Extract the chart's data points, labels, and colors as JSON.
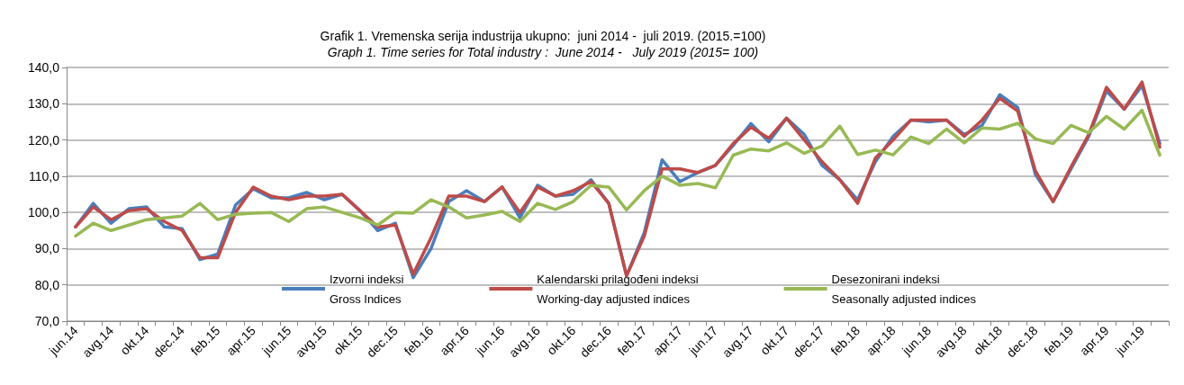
{
  "chart_data": {
    "type": "line",
    "title": "Grafik 1. Vremenska serija industrija ukupno:  juni 2014 -  juli 2019. (2015.=100)",
    "subtitle": "Graph 1. Time series for Total industry :  June 2014 -   July 2019 (2015= 100)",
    "categories": [
      "jun.14",
      null,
      "avg.14",
      null,
      "okt.14",
      null,
      "dec.14",
      null,
      "feb.15",
      null,
      "apr.15",
      null,
      "jun.15",
      null,
      "avg.15",
      null,
      "okt.15",
      null,
      "dec.15",
      null,
      "feb.16",
      null,
      "apr.16",
      null,
      "jun.16",
      null,
      "avg.16",
      null,
      "okt.16",
      null,
      "dec.16",
      null,
      "feb.17",
      null,
      "apr.17",
      null,
      "jun.17",
      null,
      "avg.17",
      null,
      "okt.17",
      null,
      "dec.17",
      null,
      "feb.18",
      null,
      "apr.18",
      null,
      "jun.18",
      null,
      "avg.18",
      null,
      "okt.18",
      null,
      "dec.18",
      null,
      "feb.19",
      null,
      "apr.19",
      null,
      "jun.19",
      null
    ],
    "series": [
      {
        "name": "Izvorni indeksi\nGross Indices",
        "color": "#4a7ebb",
        "values": [
          96,
          102.5,
          97,
          101,
          101.5,
          96,
          95.5,
          87,
          88.5,
          102,
          106.5,
          104,
          104,
          105.5,
          103.5,
          105,
          100.5,
          95,
          97,
          82,
          90,
          103,
          106,
          103,
          107,
          98.5,
          107.5,
          104.5,
          105,
          109,
          102.5,
          82.5,
          94.5,
          114.5,
          108.5,
          111,
          113,
          118.5,
          124.5,
          119.5,
          126,
          121.5,
          113,
          109,
          103.5,
          114,
          121,
          125.5,
          125,
          125.5,
          121.5,
          124,
          132.5,
          129,
          110.5,
          103,
          112,
          121,
          133.5,
          128.5,
          135,
          119
        ]
      },
      {
        "name": "Kalendarski prilagođeni indeksi\nWorking-day adjusted indices",
        "color": "#be4b48",
        "values": [
          96,
          101.5,
          98,
          100.5,
          101,
          97.5,
          95,
          87.5,
          87.5,
          100,
          107,
          104.5,
          103.5,
          104.5,
          104.5,
          105,
          100.5,
          96,
          96.5,
          83,
          93,
          104.5,
          104.5,
          103,
          107,
          100,
          107,
          104.5,
          106,
          108.5,
          102.5,
          82.5,
          93.5,
          112,
          112,
          111,
          113,
          119,
          123.5,
          120.5,
          126,
          120,
          114,
          109,
          102.5,
          115,
          120,
          125.5,
          125.5,
          125.5,
          121,
          125.5,
          131.5,
          128,
          111.5,
          103,
          112.5,
          121.5,
          134.5,
          128.5,
          136,
          118
        ]
      },
      {
        "name": "Desezonirani indeksi\nSeasonally adjusted indices",
        "color": "#98b954",
        "values": [
          93.5,
          97,
          95,
          96.5,
          98,
          98.5,
          99,
          102.5,
          98,
          99.5,
          99.8,
          100,
          97.5,
          101,
          101.5,
          100,
          98.5,
          96.5,
          100,
          99.8,
          103.5,
          101.5,
          98.5,
          99.3,
          100.3,
          97.5,
          102.5,
          100.8,
          103,
          107.5,
          107,
          100.7,
          106,
          110,
          107.5,
          108,
          106.8,
          115.8,
          117.5,
          117,
          119.2,
          116.3,
          118.3,
          123.8,
          116,
          117.2,
          115.9,
          120.8,
          119,
          123,
          119.2,
          123.3,
          123,
          124.6,
          120.3,
          119,
          124,
          122,
          126.5,
          123,
          128.2,
          115.8
        ]
      }
    ],
    "ylim": [
      70,
      140
    ],
    "yticks": [
      {
        "value": 70,
        "label": "70,0"
      },
      {
        "value": 80,
        "label": "80,0"
      },
      {
        "value": 90,
        "label": "90,0"
      },
      {
        "value": 100,
        "label": "100,0"
      },
      {
        "value": 110,
        "label": "110,0"
      },
      {
        "value": 120,
        "label": "120,0"
      },
      {
        "value": 130,
        "label": "130,0"
      },
      {
        "value": 140,
        "label": "140,0"
      }
    ],
    "grid": "y",
    "legend": "bottom",
    "marker": "none",
    "line_style": "solid"
  }
}
